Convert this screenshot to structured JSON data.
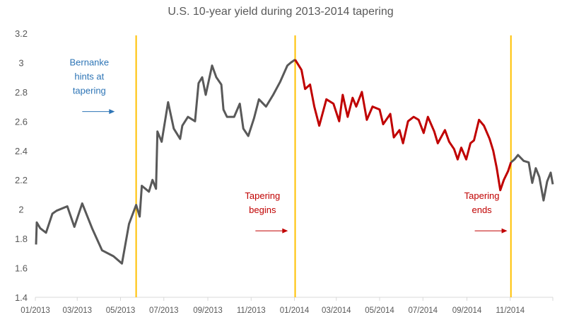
{
  "chart_data": {
    "type": "line",
    "title": "U.S. 10-year yield during 2013-2014 tapering",
    "xlabel": "",
    "ylabel": "",
    "ylim": [
      1.4,
      3.2
    ],
    "yticks": [
      "1.4",
      "1.6",
      "1.8",
      "2",
      "2.2",
      "2.4",
      "2.6",
      "2.8",
      "3",
      "3.2"
    ],
    "xlim": [
      "2013-01-01",
      "2014-12-31"
    ],
    "xticks": [
      {
        "date": "2013-01-01",
        "label": "01/2013"
      },
      {
        "date": "2013-03-01",
        "label": "03/2013"
      },
      {
        "date": "2013-05-01",
        "label": "05/2013"
      },
      {
        "date": "2013-07-01",
        "label": "07/2013"
      },
      {
        "date": "2013-09-01",
        "label": "09/2013"
      },
      {
        "date": "2013-11-01",
        "label": "11/2013"
      },
      {
        "date": "2014-01-01",
        "label": "01/2014"
      },
      {
        "date": "2014-03-01",
        "label": "03/2014"
      },
      {
        "date": "2014-05-01",
        "label": "05/2014"
      },
      {
        "date": "2014-07-01",
        "label": "07/2014"
      },
      {
        "date": "2014-09-01",
        "label": "09/2014"
      },
      {
        "date": "2014-11-01",
        "label": "11/2014"
      }
    ],
    "grid": false,
    "legend": "none",
    "colors": {
      "pre_post": "#595959",
      "tapering": "#c00000",
      "event_line": "#ffc000",
      "bernanke_note": "#2e75b6",
      "tapering_note": "#c00000"
    },
    "series": [
      {
        "segment": "before-tapering",
        "color": "#595959",
        "points": [
          [
            "2013-01-02",
            1.76
          ],
          [
            "2013-01-03",
            1.91
          ],
          [
            "2013-01-08",
            1.87
          ],
          [
            "2013-01-16",
            1.84
          ],
          [
            "2013-01-25",
            1.97
          ],
          [
            "2013-01-31",
            1.99
          ],
          [
            "2013-02-15",
            2.02
          ],
          [
            "2013-02-25",
            1.88
          ],
          [
            "2013-03-08",
            2.04
          ],
          [
            "2013-03-22",
            1.87
          ],
          [
            "2013-04-05",
            1.72
          ],
          [
            "2013-04-21",
            1.68
          ],
          [
            "2013-05-03",
            1.63
          ],
          [
            "2013-05-13",
            1.9
          ],
          [
            "2013-05-23",
            2.03
          ],
          [
            "2013-05-28",
            1.95
          ],
          [
            "2013-05-31",
            2.16
          ],
          [
            "2013-06-10",
            2.12
          ],
          [
            "2013-06-15",
            2.2
          ],
          [
            "2013-06-20",
            2.14
          ],
          [
            "2013-06-22",
            2.53
          ],
          [
            "2013-06-28",
            2.46
          ],
          [
            "2013-07-07",
            2.73
          ],
          [
            "2013-07-15",
            2.55
          ],
          [
            "2013-07-24",
            2.48
          ],
          [
            "2013-07-27",
            2.57
          ],
          [
            "2013-08-04",
            2.63
          ],
          [
            "2013-08-14",
            2.6
          ],
          [
            "2013-08-19",
            2.86
          ],
          [
            "2013-08-24",
            2.9
          ],
          [
            "2013-08-29",
            2.78
          ],
          [
            "2013-09-07",
            2.98
          ],
          [
            "2013-09-13",
            2.9
          ],
          [
            "2013-09-20",
            2.85
          ],
          [
            "2013-09-23",
            2.68
          ],
          [
            "2013-09-28",
            2.63
          ],
          [
            "2013-10-08",
            2.63
          ],
          [
            "2013-10-16",
            2.72
          ],
          [
            "2013-10-21",
            2.55
          ],
          [
            "2013-10-28",
            2.5
          ],
          [
            "2013-11-05",
            2.62
          ],
          [
            "2013-11-12",
            2.75
          ],
          [
            "2013-11-22",
            2.7
          ],
          [
            "2013-12-02",
            2.78
          ],
          [
            "2013-12-12",
            2.87
          ],
          [
            "2013-12-22",
            2.98
          ],
          [
            "2013-12-27",
            3.0
          ],
          [
            "2014-01-02",
            3.02
          ]
        ]
      },
      {
        "segment": "during-tapering",
        "color": "#c00000",
        "points": [
          [
            "2014-01-02",
            3.02
          ],
          [
            "2014-01-11",
            2.95
          ],
          [
            "2014-01-16",
            2.82
          ],
          [
            "2014-01-23",
            2.85
          ],
          [
            "2014-01-29",
            2.7
          ],
          [
            "2014-02-05",
            2.57
          ],
          [
            "2014-02-15",
            2.75
          ],
          [
            "2014-02-25",
            2.72
          ],
          [
            "2014-03-05",
            2.6
          ],
          [
            "2014-03-10",
            2.78
          ],
          [
            "2014-03-17",
            2.63
          ],
          [
            "2014-03-24",
            2.76
          ],
          [
            "2014-03-29",
            2.7
          ],
          [
            "2014-04-06",
            2.8
          ],
          [
            "2014-04-13",
            2.61
          ],
          [
            "2014-04-21",
            2.7
          ],
          [
            "2014-05-01",
            2.68
          ],
          [
            "2014-05-06",
            2.58
          ],
          [
            "2014-05-16",
            2.65
          ],
          [
            "2014-05-21",
            2.49
          ],
          [
            "2014-05-29",
            2.54
          ],
          [
            "2014-06-03",
            2.45
          ],
          [
            "2014-06-10",
            2.6
          ],
          [
            "2014-06-18",
            2.63
          ],
          [
            "2014-06-25",
            2.61
          ],
          [
            "2014-07-02",
            2.52
          ],
          [
            "2014-07-08",
            2.63
          ],
          [
            "2014-07-17",
            2.53
          ],
          [
            "2014-07-22",
            2.45
          ],
          [
            "2014-08-01",
            2.54
          ],
          [
            "2014-08-07",
            2.46
          ],
          [
            "2014-08-14",
            2.41
          ],
          [
            "2014-08-19",
            2.34
          ],
          [
            "2014-08-24",
            2.42
          ],
          [
            "2014-08-31",
            2.34
          ],
          [
            "2014-09-06",
            2.45
          ],
          [
            "2014-09-11",
            2.47
          ],
          [
            "2014-09-18",
            2.61
          ],
          [
            "2014-09-25",
            2.57
          ],
          [
            "2014-10-03",
            2.48
          ],
          [
            "2014-10-08",
            2.4
          ],
          [
            "2014-10-13",
            2.28
          ],
          [
            "2014-10-18",
            2.13
          ],
          [
            "2014-10-23",
            2.2
          ],
          [
            "2014-10-29",
            2.26
          ],
          [
            "2014-11-02",
            2.32
          ]
        ]
      },
      {
        "segment": "after-tapering",
        "color": "#595959",
        "points": [
          [
            "2014-11-02",
            2.32
          ],
          [
            "2014-11-07",
            2.34
          ],
          [
            "2014-11-12",
            2.37
          ],
          [
            "2014-11-20",
            2.33
          ],
          [
            "2014-11-27",
            2.32
          ],
          [
            "2014-12-02",
            2.18
          ],
          [
            "2014-12-07",
            2.28
          ],
          [
            "2014-12-12",
            2.22
          ],
          [
            "2014-12-18",
            2.06
          ],
          [
            "2014-12-23",
            2.19
          ],
          [
            "2014-12-28",
            2.25
          ],
          [
            "2014-12-31",
            2.17
          ]
        ]
      }
    ],
    "event_lines": [
      {
        "date": "2013-05-23",
        "name": "bernanke-hint"
      },
      {
        "date": "2014-01-02",
        "name": "tapering-begins"
      },
      {
        "date": "2014-11-02",
        "name": "tapering-ends"
      }
    ],
    "annotations": [
      {
        "name": "bernanke-hint",
        "lines": [
          "Bernanke",
          "hints at",
          "tapering"
        ],
        "color": "#2e75b6",
        "anchor_date": "2013-03-18",
        "anchor_value": 2.98
      },
      {
        "name": "tapering-begins",
        "lines": [
          "Tapering",
          "begins"
        ],
        "color": "#c00000",
        "anchor_date": "2013-11-17",
        "anchor_value": 2.07
      },
      {
        "name": "tapering-ends",
        "lines": [
          "Tapering",
          "ends"
        ],
        "color": "#c00000",
        "anchor_date": "2014-09-22",
        "anchor_value": 2.07
      }
    ]
  }
}
